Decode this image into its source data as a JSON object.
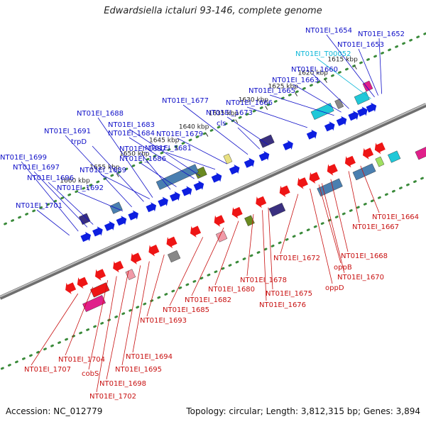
{
  "title": "Edwardsiella ictaluri 93-146, complete genome",
  "footer": {
    "accession": "Accession: NC_012779",
    "summary": "Topology: circular; Length: 3,812,315 bp; Genes: 3,894"
  },
  "colors": {
    "axis": "#8a8a8a",
    "dots": "#3a8a3a",
    "forward_label": "#1010c8",
    "reverse_label": "#c81010",
    "rna_label": "#10b8d8",
    "gene_blue": "#0d1ee0",
    "gene_red": "#ee1515",
    "cds_steel": "#4a7fb0",
    "cds_navy": "#3a3080",
    "cds_olive": "#6a8a20",
    "cds_gray": "#888888",
    "cds_cyan": "#20c8d8",
    "cds_magenta": "#e0208a",
    "cds_pink": "#f09aa8",
    "cds_yellow": "#e8e080",
    "cds_lime": "#a0e060"
  },
  "ticks": [
    {
      "label": "1615 kbp",
      "kbp": 1615
    },
    {
      "label": "1620 kbp",
      "kbp": 1620
    },
    {
      "label": "1625 kbp",
      "kbp": 1625
    },
    {
      "label": "1630 kbp",
      "kbp": 1630
    },
    {
      "label": "1635 kbp",
      "kbp": 1635
    },
    {
      "label": "1640 kbp",
      "kbp": 1640
    },
    {
      "label": "1645 kbp",
      "kbp": 1645
    },
    {
      "label": "1650 kbp",
      "kbp": 1650
    },
    {
      "label": "1655 kbp",
      "kbp": 1655
    },
    {
      "label": "1660 kbp",
      "kbp": 1660
    }
  ],
  "labels_forward": [
    {
      "text": "NT01EI_1654",
      "kbp": 1614.2,
      "type": "gene"
    },
    {
      "text": "NT01EI_1652",
      "kbp": 1613.0,
      "type": "gene"
    },
    {
      "text": "NT01EI_1653",
      "kbp": 1613.6,
      "type": "gene"
    },
    {
      "text": "NT01EI_T00052",
      "kbp": 1614.8,
      "type": "trna"
    },
    {
      "text": "NT01EI_1660",
      "kbp": 1618.5,
      "type": "gene"
    },
    {
      "text": "NT01EI_1663",
      "kbp": 1619.8,
      "type": "gene"
    },
    {
      "text": "NT01EI_1665",
      "kbp": 1621.0,
      "type": "gene"
    },
    {
      "text": "NT01EI_1666",
      "kbp": 1625.5,
      "type": "gene"
    },
    {
      "text": "NT01EI_1677",
      "kbp": 1635.5,
      "type": "gene"
    },
    {
      "text": "NT01EI_1673",
      "kbp": 1632.0,
      "type": "gene"
    },
    {
      "text": "cls",
      "kbp": 1633.5,
      "type": "gene"
    },
    {
      "text": "NT01EI_1688",
      "kbp": 1651.5,
      "type": "gene"
    },
    {
      "text": "NT01EI_1683",
      "kbp": 1643.5,
      "type": "gene"
    },
    {
      "text": "NT01EI_1684",
      "kbp": 1644.5,
      "type": "gene"
    },
    {
      "text": "NT01EI_1679",
      "kbp": 1639.0,
      "type": "gene"
    },
    {
      "text": "NT01EI_1691",
      "kbp": 1655.0,
      "type": "gene"
    },
    {
      "text": "trpD",
      "kbp": 1653.0,
      "type": "gene"
    },
    {
      "text": "NT01EI_1687",
      "kbp": 1648.5,
      "type": "gene"
    },
    {
      "text": "NT01EI_1681",
      "kbp": 1641.0,
      "type": "gene"
    },
    {
      "text": "NT01EI_1686",
      "kbp": 1647.5,
      "type": "gene"
    },
    {
      "text": "NT01EI_1699",
      "kbp": 1664.0,
      "type": "gene"
    },
    {
      "text": "NT01EI_1697",
      "kbp": 1662.5,
      "type": "gene"
    },
    {
      "text": "NT01EI_1689",
      "kbp": 1652.0,
      "type": "gene"
    },
    {
      "text": "NT01EI_1696",
      "kbp": 1661.5,
      "type": "gene"
    },
    {
      "text": "NT01EI_1692",
      "kbp": 1656.5,
      "type": "gene"
    },
    {
      "text": "NT01EI_1701",
      "kbp": 1665.5,
      "type": "gene"
    }
  ],
  "labels_reverse": [
    {
      "text": "NT01EI_1664",
      "kbp": 1620.5
    },
    {
      "text": "NT01EI_1667",
      "kbp": 1622.5
    },
    {
      "text": "NT01EI_1668",
      "kbp": 1625.5
    },
    {
      "text": "NT01EI_1672",
      "kbp": 1631.0
    },
    {
      "text": "oppB",
      "kbp": 1627.5
    },
    {
      "text": "NT01EI_1670",
      "kbp": 1627.0
    },
    {
      "text": "oppD",
      "kbp": 1629.0
    },
    {
      "text": "NT01EI_1678",
      "kbp": 1638.5
    },
    {
      "text": "NT01EI_1675",
      "kbp": 1636.0
    },
    {
      "text": "NT01EI_1680",
      "kbp": 1641.0
    },
    {
      "text": "NT01EI_1676",
      "kbp": 1637.0
    },
    {
      "text": "NT01EI_1682",
      "kbp": 1643.5
    },
    {
      "text": "NT01EI_1685",
      "kbp": 1647.0
    },
    {
      "text": "NT01EI_1693",
      "kbp": 1653.5
    },
    {
      "text": "NT01EI_1694",
      "kbp": 1656.0
    },
    {
      "text": "NT01EI_1704",
      "kbp": 1665.5
    },
    {
      "text": "NT01EI_1695",
      "kbp": 1657.5
    },
    {
      "text": "cobS",
      "kbp": 1663.0
    },
    {
      "text": "NT01EI_1707",
      "kbp": 1668.0
    },
    {
      "text": "NT01EI_1698",
      "kbp": 1659.5
    },
    {
      "text": "NT01EI_1702",
      "kbp": 1661.5
    }
  ]
}
